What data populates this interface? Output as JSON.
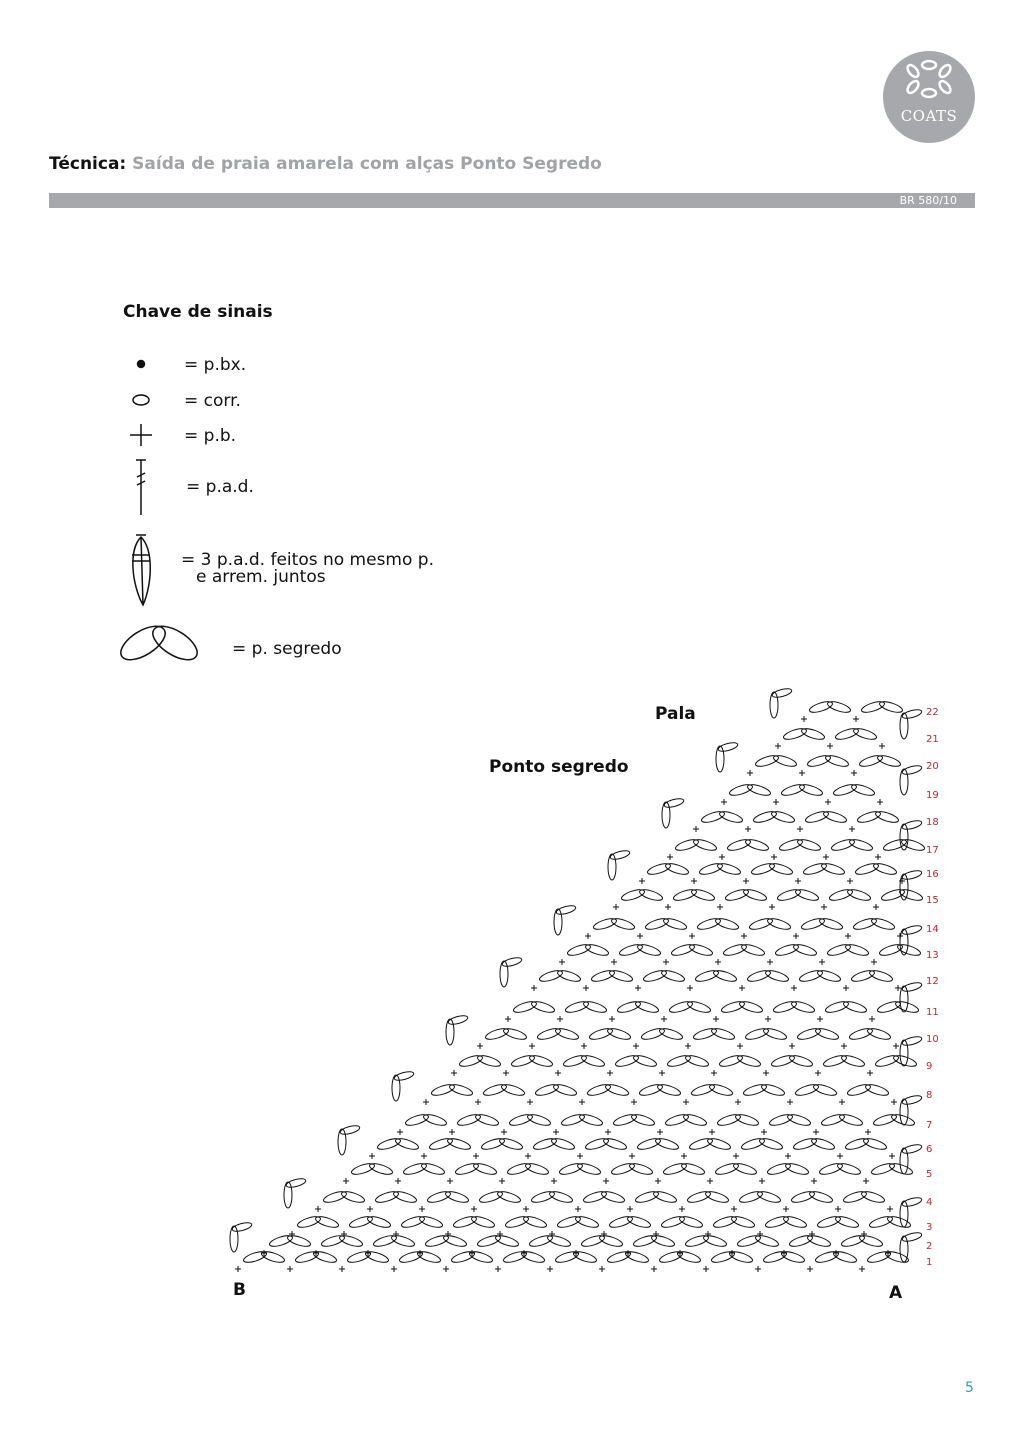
{
  "header": {
    "logo": "COATS",
    "title_label": "Técnica:",
    "title_text": "Saída de praia amarela com alças Ponto Segredo",
    "code": "BR 580/10"
  },
  "legend": {
    "title": "Chave de sinais",
    "items": [
      {
        "icon": "slip-stitch-dot",
        "text": "= p.bx."
      },
      {
        "icon": "chain-oval",
        "text": "= corr."
      },
      {
        "icon": "single-crochet-plus",
        "text": "= p.b."
      },
      {
        "icon": "double-treble-symbol",
        "text": "= p.a.d."
      },
      {
        "icon": "cluster-symbol",
        "text": "= 3 p.a.d. feitos no mesmo p.",
        "text2": "e arrem. juntos"
      },
      {
        "icon": "secret-stitch-symbol",
        "text": "= p. segredo"
      }
    ]
  },
  "chart": {
    "label_pala": "Pala",
    "label_ponto": "Ponto segredo",
    "label_a": "A",
    "label_b": "B",
    "rows": [
      "1",
      "2",
      "3",
      "4",
      "5",
      "6",
      "7",
      "8",
      "9",
      "10",
      "11",
      "12",
      "13",
      "14",
      "15",
      "16",
      "17",
      "18",
      "19",
      "20",
      "21",
      "22"
    ]
  },
  "footer": {
    "page": "5"
  },
  "colors": {
    "gray": "#a7a8ab",
    "row_numbers": "#c1272d",
    "page_number": "#2a9fb5"
  }
}
